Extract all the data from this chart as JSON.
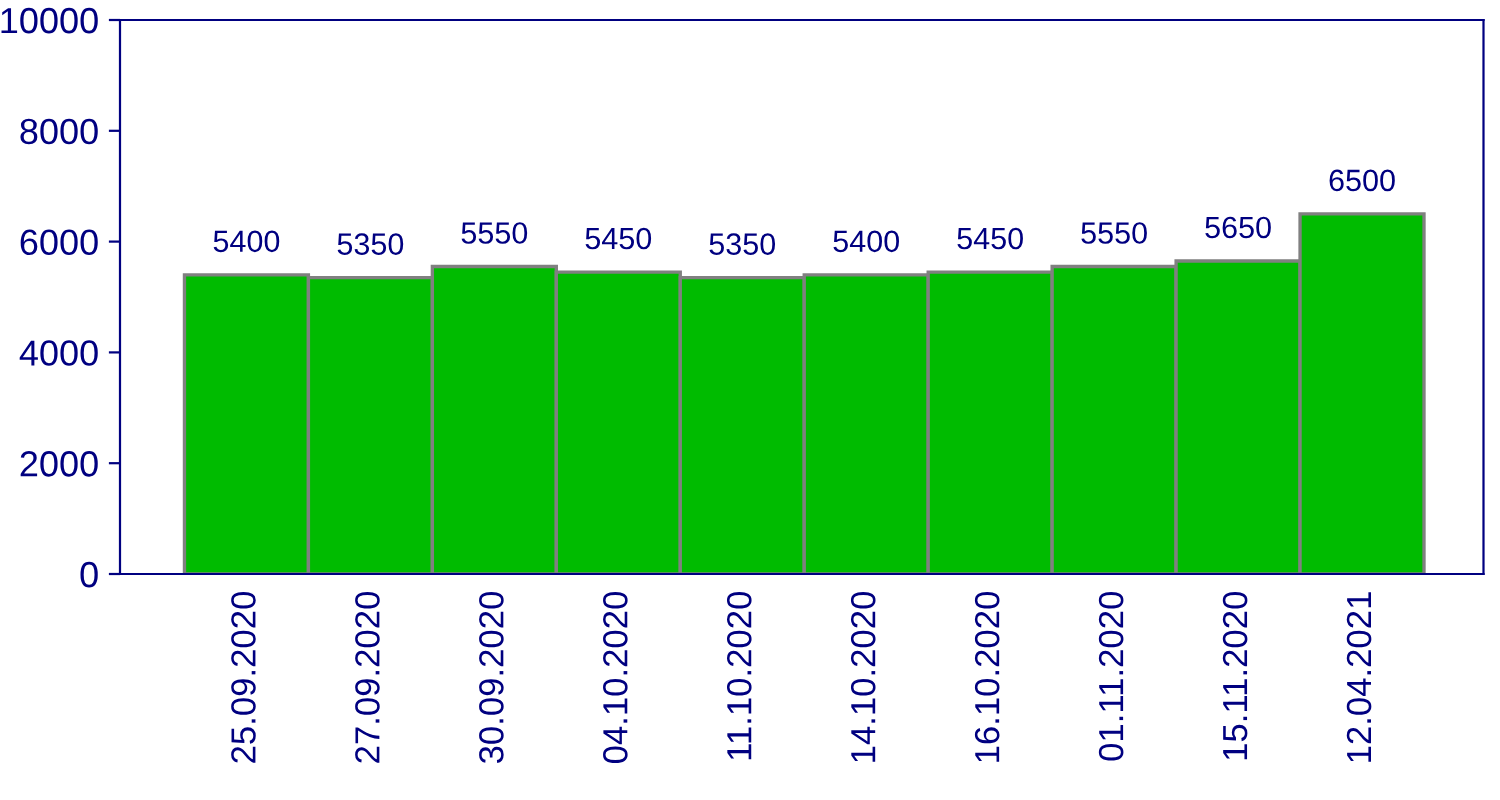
{
  "chart_data": {
    "type": "bar",
    "categories": [
      "25.09.2020",
      "27.09.2020",
      "30.09.2020",
      "04.10.2020",
      "11.10.2020",
      "14.10.2020",
      "16.10.2020",
      "01.11.2020",
      "15.11.2020",
      "12.04.2021"
    ],
    "values": [
      5400,
      5350,
      5550,
      5450,
      5350,
      5400,
      5450,
      5550,
      5650,
      6500
    ],
    "color": "#00bb00",
    "ylim": [
      0,
      10000
    ],
    "yticks": [
      0,
      2000,
      4000,
      6000,
      8000,
      10000
    ],
    "grid": false,
    "data_labels": true
  }
}
